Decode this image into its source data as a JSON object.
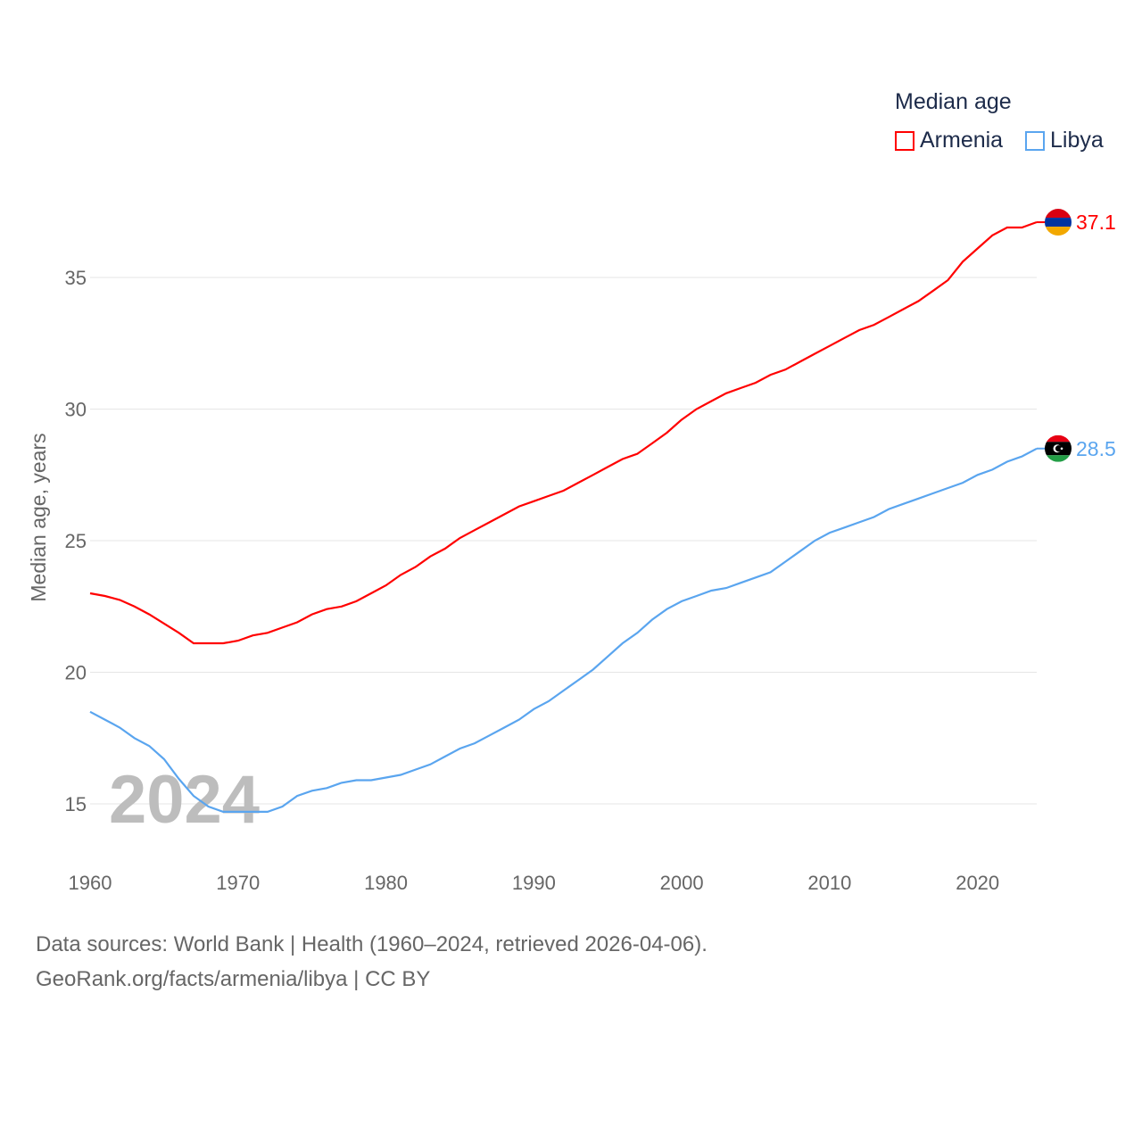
{
  "chart_data": {
    "type": "line",
    "title": "Median age",
    "xlabel": "",
    "ylabel": "Median age, years",
    "xlim": [
      1960,
      2024
    ],
    "ylim": [
      13,
      38
    ],
    "x_ticks": [
      1960,
      1970,
      1980,
      1990,
      2000,
      2010,
      2020
    ],
    "y_ticks": [
      15,
      20,
      25,
      30,
      35
    ],
    "grid": true,
    "legend_placement": "top-right",
    "year_watermark": "2024",
    "x": [
      1960,
      1961,
      1962,
      1963,
      1964,
      1965,
      1966,
      1967,
      1968,
      1969,
      1970,
      1971,
      1972,
      1973,
      1974,
      1975,
      1976,
      1977,
      1978,
      1979,
      1980,
      1981,
      1982,
      1983,
      1984,
      1985,
      1986,
      1987,
      1988,
      1989,
      1990,
      1991,
      1992,
      1993,
      1994,
      1995,
      1996,
      1997,
      1998,
      1999,
      2000,
      2001,
      2002,
      2003,
      2004,
      2005,
      2006,
      2007,
      2008,
      2009,
      2010,
      2011,
      2012,
      2013,
      2014,
      2015,
      2016,
      2017,
      2018,
      2019,
      2020,
      2021,
      2022,
      2023,
      2024
    ],
    "series": [
      {
        "name": "Armenia",
        "color": "#ff0000",
        "end_label": "37.1",
        "values": [
          23.0,
          22.9,
          22.75,
          22.5,
          22.2,
          21.85,
          21.5,
          21.1,
          21.1,
          21.1,
          21.2,
          21.4,
          21.5,
          21.7,
          21.9,
          22.2,
          22.4,
          22.5,
          22.7,
          23.0,
          23.3,
          23.7,
          24.0,
          24.4,
          24.7,
          25.1,
          25.4,
          25.7,
          26.0,
          26.3,
          26.5,
          26.7,
          26.9,
          27.2,
          27.5,
          27.8,
          28.1,
          28.3,
          28.7,
          29.1,
          29.6,
          30.0,
          30.3,
          30.6,
          30.8,
          31.0,
          31.3,
          31.5,
          31.8,
          32.1,
          32.4,
          32.7,
          33.0,
          33.2,
          33.5,
          33.8,
          34.1,
          34.5,
          34.9,
          35.6,
          36.1,
          36.6,
          36.9,
          36.9,
          37.1
        ]
      },
      {
        "name": "Libya",
        "color": "#5aa5ef",
        "end_label": "28.5",
        "values": [
          18.5,
          18.2,
          17.9,
          17.5,
          17.2,
          16.7,
          15.95,
          15.3,
          14.9,
          14.7,
          14.7,
          14.7,
          14.7,
          14.9,
          15.3,
          15.5,
          15.6,
          15.8,
          15.9,
          15.9,
          16.0,
          16.1,
          16.3,
          16.5,
          16.8,
          17.1,
          17.3,
          17.6,
          17.9,
          18.2,
          18.6,
          18.9,
          19.3,
          19.7,
          20.1,
          20.6,
          21.1,
          21.5,
          22.0,
          22.4,
          22.7,
          22.9,
          23.1,
          23.2,
          23.4,
          23.6,
          23.8,
          24.2,
          24.6,
          25.0,
          25.3,
          25.5,
          25.7,
          25.9,
          26.2,
          26.4,
          26.6,
          26.8,
          27.0,
          27.2,
          27.5,
          27.7,
          28.0,
          28.2,
          28.5
        ]
      }
    ]
  },
  "footer": {
    "line1": "Data sources: World Bank | Health (1960–2024, retrieved 2026-04-06).",
    "line2": "GeoRank.org/facts/armenia/libya | CC BY"
  }
}
